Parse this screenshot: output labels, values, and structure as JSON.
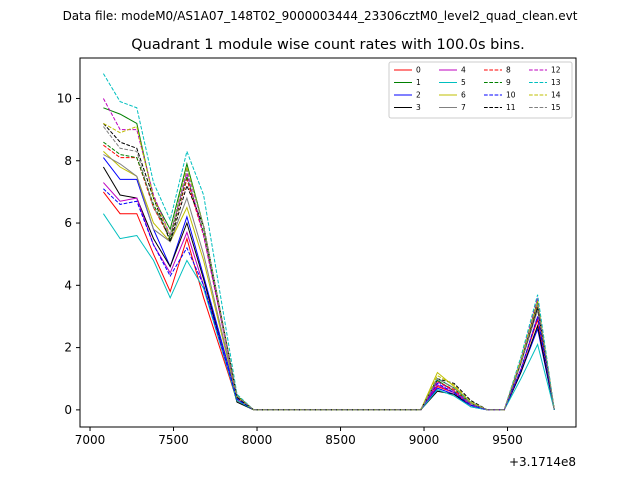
{
  "header": {
    "data_file": "Data file: modeM0/AS1A07_148T02_9000003444_23306cztM0_level2_quad_clean.evt"
  },
  "chart_data": {
    "type": "line",
    "title": "Quadrant 1 module wise count rates with 100.0s bins.",
    "xlabel": "",
    "ylabel": "",
    "x_offset_label": "+3.1714e8",
    "xlim": [
      6940,
      9910
    ],
    "ylim": [
      -0.55,
      11.3
    ],
    "xticks": [
      7000,
      7500,
      8000,
      8500,
      9000,
      9500
    ],
    "yticks": [
      0,
      2,
      4,
      6,
      8,
      10
    ],
    "grid": false,
    "legend": {
      "position": "top-right",
      "columns": 4
    },
    "x": [
      7080,
      7180,
      7280,
      7380,
      7480,
      7580,
      7680,
      7880,
      7980,
      8080,
      8180,
      8280,
      8380,
      8480,
      8580,
      8680,
      8780,
      8880,
      8980,
      9080,
      9180,
      9280,
      9380,
      9480,
      9580,
      9680,
      9780
    ],
    "series": [
      {
        "name": "0",
        "color": "#ff0000",
        "dash": "solid",
        "values": [
          7.0,
          6.3,
          6.3,
          5.0,
          3.8,
          5.5,
          3.6,
          0.3,
          0.0,
          0,
          0,
          0,
          0,
          0,
          0,
          0,
          0,
          0,
          0.0,
          0.75,
          0.55,
          0.15,
          0.0,
          0.0,
          1.3,
          2.9,
          0.0
        ]
      },
      {
        "name": "1",
        "color": "#008000",
        "dash": "solid",
        "values": [
          9.7,
          9.5,
          9.2,
          6.8,
          5.8,
          7.9,
          5.9,
          0.45,
          0.0,
          0,
          0,
          0,
          0,
          0,
          0,
          0,
          0,
          0,
          0.0,
          0.95,
          0.6,
          0.2,
          0.0,
          0.0,
          1.5,
          3.3,
          0.0
        ]
      },
      {
        "name": "2",
        "color": "#0000ff",
        "dash": "solid",
        "values": [
          8.1,
          7.4,
          7.4,
          5.8,
          4.6,
          6.2,
          4.3,
          0.4,
          0.0,
          0,
          0,
          0,
          0,
          0,
          0,
          0,
          0,
          0,
          0.0,
          0.7,
          0.5,
          0.1,
          0.0,
          0.0,
          1.2,
          2.6,
          0.0
        ]
      },
      {
        "name": "3",
        "color": "#000000",
        "dash": "solid",
        "values": [
          7.8,
          6.9,
          6.8,
          5.5,
          4.6,
          6.0,
          4.2,
          0.25,
          0.0,
          0,
          0,
          0,
          0,
          0,
          0,
          0,
          0,
          0,
          0.0,
          0.6,
          0.5,
          0.15,
          0.0,
          0.0,
          1.2,
          2.7,
          0.0
        ]
      },
      {
        "name": "4",
        "color": "#bf00bf",
        "dash": "solid",
        "values": [
          7.3,
          6.7,
          6.8,
          5.3,
          4.4,
          5.7,
          4.0,
          0.35,
          0.0,
          0,
          0,
          0,
          0,
          0,
          0,
          0,
          0,
          0,
          0.0,
          0.8,
          0.55,
          0.15,
          0.0,
          0.0,
          1.3,
          3.0,
          0.0
        ]
      },
      {
        "name": "5",
        "color": "#00bfbf",
        "dash": "solid",
        "values": [
          6.3,
          5.5,
          5.6,
          4.8,
          3.6,
          4.8,
          3.9,
          0.3,
          0.0,
          0,
          0,
          0,
          0,
          0,
          0,
          0,
          0,
          0,
          0.0,
          0.65,
          0.45,
          0.1,
          0.0,
          0.0,
          1.0,
          2.1,
          0.0
        ]
      },
      {
        "name": "6",
        "color": "#bfbf00",
        "dash": "solid",
        "values": [
          8.3,
          7.8,
          7.5,
          6.0,
          5.4,
          6.5,
          4.8,
          0.4,
          0.0,
          0,
          0,
          0,
          0,
          0,
          0,
          0,
          0,
          0,
          0.0,
          1.2,
          0.75,
          0.25,
          0.0,
          0.0,
          1.6,
          3.4,
          0.0
        ]
      },
      {
        "name": "7",
        "color": "#808080",
        "dash": "solid",
        "values": [
          8.2,
          7.9,
          7.5,
          5.8,
          5.4,
          6.8,
          5.0,
          0.45,
          0.0,
          0,
          0,
          0,
          0,
          0,
          0,
          0,
          0,
          0,
          0.0,
          1.0,
          0.7,
          0.2,
          0.0,
          0.0,
          1.5,
          3.2,
          0.0
        ]
      },
      {
        "name": "8",
        "color": "#ff0000",
        "dash": "dashed",
        "values": [
          8.5,
          8.1,
          8.1,
          6.5,
          5.5,
          7.4,
          5.6,
          0.45,
          0.0,
          0,
          0,
          0,
          0,
          0,
          0,
          0,
          0,
          0,
          0.0,
          0.9,
          0.65,
          0.2,
          0.0,
          0.0,
          1.5,
          3.4,
          0.0
        ]
      },
      {
        "name": "9",
        "color": "#008000",
        "dash": "dashed",
        "values": [
          8.6,
          8.2,
          8.1,
          6.6,
          5.5,
          7.5,
          5.7,
          0.45,
          0.0,
          0,
          0,
          0,
          0,
          0,
          0,
          0,
          0,
          0,
          0.0,
          1.0,
          0.7,
          0.2,
          0.0,
          0.0,
          1.5,
          3.5,
          0.0
        ]
      },
      {
        "name": "10",
        "color": "#0000ff",
        "dash": "dashed",
        "values": [
          7.1,
          6.6,
          6.7,
          5.3,
          4.3,
          5.2,
          4.0,
          0.35,
          0.0,
          0,
          0,
          0,
          0,
          0,
          0,
          0,
          0,
          0,
          0.0,
          0.85,
          0.55,
          0.15,
          0.0,
          0.0,
          1.3,
          3.0,
          0.0
        ]
      },
      {
        "name": "11",
        "color": "#000000",
        "dash": "dashed",
        "values": [
          9.2,
          8.6,
          8.4,
          6.8,
          5.4,
          7.2,
          5.9,
          0.4,
          0.0,
          0,
          0,
          0,
          0,
          0,
          0,
          0,
          0,
          0,
          0.0,
          1.0,
          0.85,
          0.3,
          0.0,
          0.0,
          1.5,
          3.3,
          0.0
        ]
      },
      {
        "name": "12",
        "color": "#bf00bf",
        "dash": "dashed",
        "values": [
          10.0,
          9.0,
          9.0,
          6.9,
          5.6,
          7.6,
          5.6,
          0.45,
          0.0,
          0,
          0,
          0,
          0,
          0,
          0,
          0,
          0,
          0,
          0.0,
          0.9,
          0.6,
          0.2,
          0.0,
          0.0,
          1.6,
          3.6,
          0.0
        ]
      },
      {
        "name": "13",
        "color": "#00bfbf",
        "dash": "dashed",
        "values": [
          10.8,
          9.9,
          9.7,
          7.3,
          6.1,
          8.3,
          6.9,
          0.5,
          0.0,
          0,
          0,
          0,
          0,
          0,
          0,
          0,
          0,
          0,
          0.0,
          1.0,
          0.7,
          0.25,
          0.0,
          0.0,
          1.7,
          3.7,
          0.0
        ]
      },
      {
        "name": "14",
        "color": "#bfbf00",
        "dash": "dashed",
        "values": [
          9.2,
          8.9,
          9.1,
          6.8,
          5.6,
          7.8,
          5.9,
          0.45,
          0.0,
          0,
          0,
          0,
          0,
          0,
          0,
          0,
          0,
          0,
          0.0,
          1.1,
          0.8,
          0.25,
          0.0,
          0.0,
          1.6,
          3.5,
          0.0
        ]
      },
      {
        "name": "15",
        "color": "#808080",
        "dash": "dashed",
        "values": [
          9.1,
          8.4,
          8.3,
          6.5,
          5.6,
          7.7,
          5.9,
          0.45,
          0.0,
          0,
          0,
          0,
          0,
          0,
          0,
          0,
          0,
          0,
          0.0,
          1.0,
          0.7,
          0.2,
          0.0,
          0.0,
          1.5,
          3.4,
          0.0
        ]
      }
    ]
  }
}
